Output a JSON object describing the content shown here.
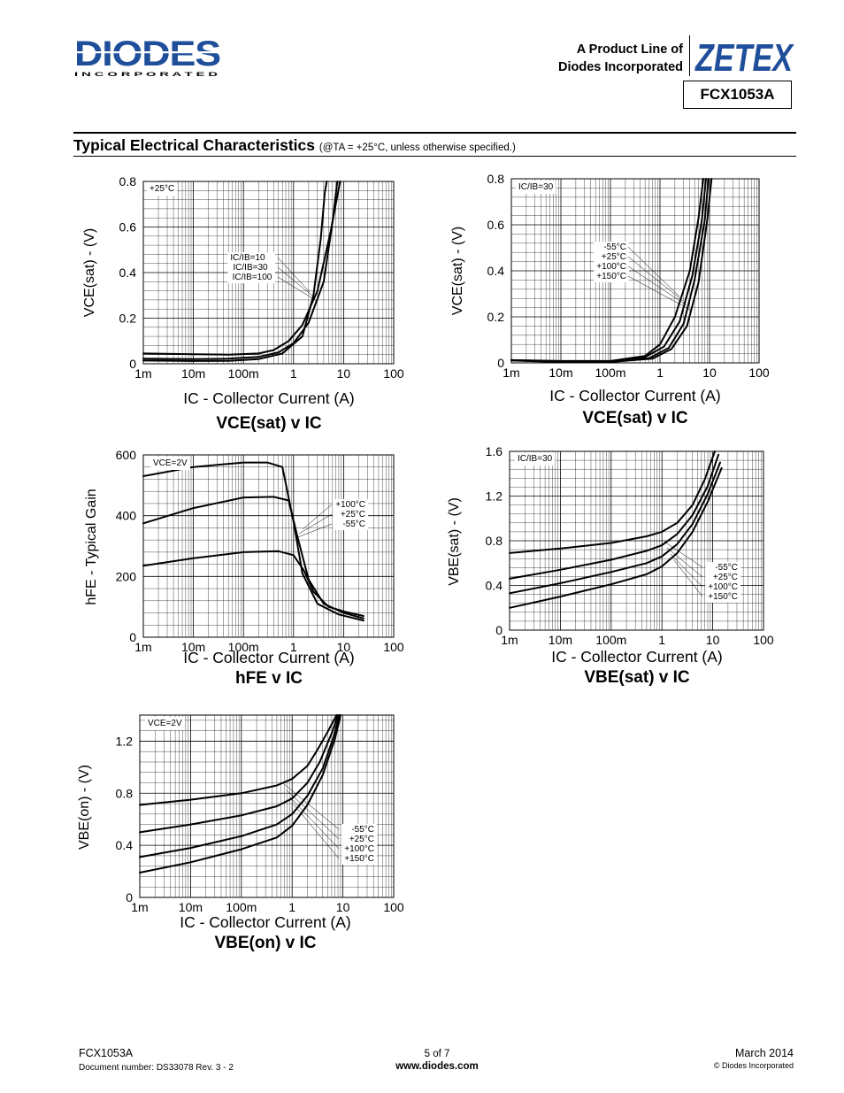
{
  "header": {
    "brand": "DIODES",
    "brand_sub": "I N C O R P O R A T E D",
    "product_line_1": "A Product Line of",
    "product_line_2": "Diodes Incorporated",
    "zetex": "ZETEX",
    "part_number": "FCX1053A"
  },
  "section": {
    "title": "Typical Electrical Characteristics",
    "note": "(@TA = +25°C, unless otherwise specified.)"
  },
  "charts": [
    {
      "id": "c1",
      "caption": "VCE(sat) v IC",
      "ylabel": "VCE(sat) - (V)",
      "xlabel": "IC - Collector Current (A)",
      "corner": "+25°C",
      "yticks": [
        "0",
        "0.2",
        "0.4",
        "0.6",
        "0.8"
      ],
      "xticks": [
        "1m",
        "10m",
        "100m",
        "1",
        "10",
        "100"
      ],
      "legend": [
        "IC/IB=10",
        "IC/IB=30",
        "IC/IB=100"
      ]
    },
    {
      "id": "c2",
      "caption": "VCE(sat) v IC",
      "ylabel": "VCE(sat) - (V)",
      "xlabel": "IC - Collector Current (A)",
      "corner": "IC/IB=30",
      "yticks": [
        "0",
        "0.2",
        "0.4",
        "0.6",
        "0.8"
      ],
      "xticks": [
        "1m",
        "10m",
        "100m",
        "1",
        "10",
        "100"
      ],
      "legend": [
        "-55°C",
        "+25°C",
        "+100°C",
        "+150°C"
      ]
    },
    {
      "id": "c3",
      "caption": "hFE v IC",
      "ylabel": "hFE - Typical Gain",
      "xlabel": "IC - Collector Current (A)",
      "corner": "VCE=2V",
      "yticks": [
        "0",
        "200",
        "400",
        "600"
      ],
      "xticks": [
        "1m",
        "10m",
        "100m",
        "1",
        "10",
        "100"
      ],
      "legend": [
        "+100°C",
        "+25°C",
        "-55°C"
      ]
    },
    {
      "id": "c4",
      "caption": "VBE(sat) v IC",
      "ylabel": "VBE(sat) - (V)",
      "xlabel": "IC - Collector Current (A)",
      "corner": "IC/IB=30",
      "yticks": [
        "0",
        "0.4",
        "0.8",
        "1.2",
        "1.6"
      ],
      "xticks": [
        "1m",
        "10m",
        "100m",
        "1",
        "10",
        "100"
      ],
      "legend": [
        "-55°C",
        "+25°C",
        "+100°C",
        "+150°C"
      ]
    },
    {
      "id": "c5",
      "caption": "VBE(on) v IC",
      "ylabel": "VBE(on) - (V)",
      "xlabel": "IC - Collector Current (A)",
      "corner": "VCE=2V",
      "yticks": [
        "0",
        "0.4",
        "0.8",
        "1.2"
      ],
      "xticks": [
        "1m",
        "10m",
        "100m",
        "1",
        "10",
        "100"
      ],
      "legend": [
        "-55°C",
        "+25°C",
        "+100°C",
        "+150°C"
      ]
    }
  ],
  "chart_data": [
    {
      "type": "line",
      "x_scale": "log",
      "xlim": [
        0.001,
        100
      ],
      "ylim": [
        0,
        0.8
      ],
      "xlabel": "IC - Collector Current (A)",
      "ylabel": "VCE(sat) - (V)",
      "title": "VCE(sat) v IC",
      "series": [
        {
          "name": "IC/IB=10",
          "x": [
            0.001,
            0.01,
            0.05,
            0.2,
            0.6,
            1.5,
            2.5,
            3.5,
            4.2,
            4.6
          ],
          "y": [
            0.014,
            0.012,
            0.013,
            0.02,
            0.045,
            0.12,
            0.3,
            0.55,
            0.75,
            0.8
          ]
        },
        {
          "name": "IC/IB=30",
          "x": [
            0.001,
            0.01,
            0.05,
            0.2,
            0.5,
            1,
            2,
            4,
            6,
            7.5
          ],
          "y": [
            0.022,
            0.02,
            0.022,
            0.03,
            0.05,
            0.09,
            0.18,
            0.36,
            0.62,
            0.8
          ]
        },
        {
          "name": "IC/IB=100",
          "x": [
            0.001,
            0.01,
            0.05,
            0.2,
            0.4,
            0.8,
            1.5,
            3,
            5.5,
            8.5
          ],
          "y": [
            0.045,
            0.042,
            0.04,
            0.045,
            0.06,
            0.1,
            0.17,
            0.32,
            0.58,
            0.8
          ]
        }
      ]
    },
    {
      "type": "line",
      "x_scale": "log",
      "xlim": [
        0.001,
        100
      ],
      "ylim": [
        0,
        0.8
      ],
      "xlabel": "IC - Collector Current (A)",
      "ylabel": "VCE(sat) - (V)",
      "title": "VCE(sat) v IC",
      "series": [
        {
          "name": "-55°C",
          "x": [
            0.001,
            0.01,
            0.1,
            0.5,
            1,
            2,
            4,
            6,
            7.5
          ],
          "y": [
            0.012,
            0.008,
            0.008,
            0.03,
            0.08,
            0.2,
            0.4,
            0.63,
            0.8
          ]
        },
        {
          "name": "+25°C",
          "x": [
            0.001,
            0.01,
            0.1,
            0.5,
            1.2,
            2.5,
            4.5,
            7,
            8.5
          ],
          "y": [
            0.012,
            0.006,
            0.006,
            0.025,
            0.07,
            0.18,
            0.38,
            0.62,
            0.8
          ]
        },
        {
          "name": "+100°C",
          "x": [
            0.001,
            0.01,
            0.1,
            0.6,
            1.5,
            3,
            5,
            8,
            9.5
          ],
          "y": [
            0.011,
            0.005,
            0.005,
            0.02,
            0.065,
            0.17,
            0.36,
            0.62,
            0.8
          ]
        },
        {
          "name": "+150°C",
          "x": [
            0.001,
            0.01,
            0.1,
            0.7,
            1.7,
            3.5,
            6,
            9,
            11
          ],
          "y": [
            0.01,
            0.004,
            0.004,
            0.018,
            0.06,
            0.16,
            0.35,
            0.62,
            0.8
          ]
        }
      ]
    },
    {
      "type": "line",
      "x_scale": "log",
      "xlim": [
        0.001,
        100
      ],
      "ylim": [
        0,
        600
      ],
      "xlabel": "IC - Collector Current (A)",
      "ylabel": "hFE - Typical Gain",
      "title": "hFE v IC",
      "series": [
        {
          "name": "+100°C",
          "x": [
            0.001,
            0.01,
            0.1,
            0.3,
            0.6,
            1,
            1.5,
            3,
            8,
            25
          ],
          "y": [
            530,
            560,
            575,
            575,
            560,
            380,
            210,
            110,
            75,
            55
          ]
        },
        {
          "name": "+25°C",
          "x": [
            0.001,
            0.01,
            0.1,
            0.4,
            0.8,
            1.2,
            2,
            4,
            10,
            25
          ],
          "y": [
            375,
            425,
            460,
            462,
            450,
            330,
            190,
            110,
            80,
            62
          ]
        },
        {
          "name": "-55°C",
          "x": [
            0.001,
            0.01,
            0.1,
            0.5,
            1,
            1.6,
            2.5,
            5,
            10,
            25
          ],
          "y": [
            235,
            260,
            280,
            283,
            270,
            220,
            150,
            100,
            85,
            70
          ]
        }
      ]
    },
    {
      "type": "line",
      "x_scale": "log",
      "xlim": [
        0.001,
        100
      ],
      "ylim": [
        0,
        1.6
      ],
      "xlabel": "IC - Collector Current (A)",
      "ylabel": "VBE(sat) - (V)",
      "title": "VBE(sat) v IC",
      "series": [
        {
          "name": "-55°C",
          "x": [
            0.001,
            0.01,
            0.1,
            0.5,
            1,
            2,
            4,
            7,
            11
          ],
          "y": [
            0.69,
            0.73,
            0.78,
            0.84,
            0.88,
            0.96,
            1.12,
            1.35,
            1.6
          ]
        },
        {
          "name": "+25°C",
          "x": [
            0.001,
            0.01,
            0.1,
            0.5,
            1,
            2,
            4,
            8,
            13
          ],
          "y": [
            0.46,
            0.54,
            0.63,
            0.71,
            0.76,
            0.86,
            1.03,
            1.29,
            1.57
          ]
        },
        {
          "name": "+100°C",
          "x": [
            0.001,
            0.01,
            0.1,
            0.5,
            1,
            2,
            4,
            8,
            14
          ],
          "y": [
            0.33,
            0.42,
            0.52,
            0.6,
            0.66,
            0.77,
            0.95,
            1.22,
            1.5
          ]
        },
        {
          "name": "+150°C",
          "x": [
            0.001,
            0.01,
            0.1,
            0.5,
            1,
            2,
            4,
            8,
            15
          ],
          "y": [
            0.2,
            0.3,
            0.41,
            0.5,
            0.57,
            0.69,
            0.88,
            1.15,
            1.45
          ]
        }
      ]
    },
    {
      "type": "line",
      "x_scale": "log",
      "xlim": [
        0.001,
        100
      ],
      "ylim": [
        0,
        1.4
      ],
      "xlabel": "IC - Collector Current (A)",
      "ylabel": "VBE(on) - (V)",
      "title": "VBE(on) v IC",
      "series": [
        {
          "name": "-55°C",
          "x": [
            0.001,
            0.01,
            0.1,
            0.5,
            1,
            2,
            3,
            5,
            7.5
          ],
          "y": [
            0.71,
            0.75,
            0.8,
            0.86,
            0.91,
            1.01,
            1.12,
            1.27,
            1.4
          ]
        },
        {
          "name": "+25°C",
          "x": [
            0.001,
            0.01,
            0.1,
            0.5,
            1,
            2,
            3.5,
            6,
            8
          ],
          "y": [
            0.5,
            0.56,
            0.63,
            0.7,
            0.76,
            0.88,
            1.04,
            1.26,
            1.4
          ]
        },
        {
          "name": "+100°C",
          "x": [
            0.001,
            0.01,
            0.1,
            0.5,
            1,
            2,
            4,
            6.5,
            8.5
          ],
          "y": [
            0.31,
            0.38,
            0.47,
            0.56,
            0.64,
            0.78,
            0.99,
            1.23,
            1.4
          ]
        },
        {
          "name": "+150°C",
          "x": [
            0.001,
            0.01,
            0.1,
            0.5,
            1,
            2,
            4,
            7,
            9
          ],
          "y": [
            0.19,
            0.27,
            0.37,
            0.46,
            0.55,
            0.71,
            0.94,
            1.22,
            1.4
          ]
        }
      ]
    }
  ],
  "footer": {
    "part": "FCX1053A",
    "doc_number": "Document number: DS33078  Rev. 3 - 2",
    "page": "5 of 7",
    "website": "www.diodes.com",
    "date": "March 2014",
    "copyright": "© Diodes Incorporated"
  }
}
